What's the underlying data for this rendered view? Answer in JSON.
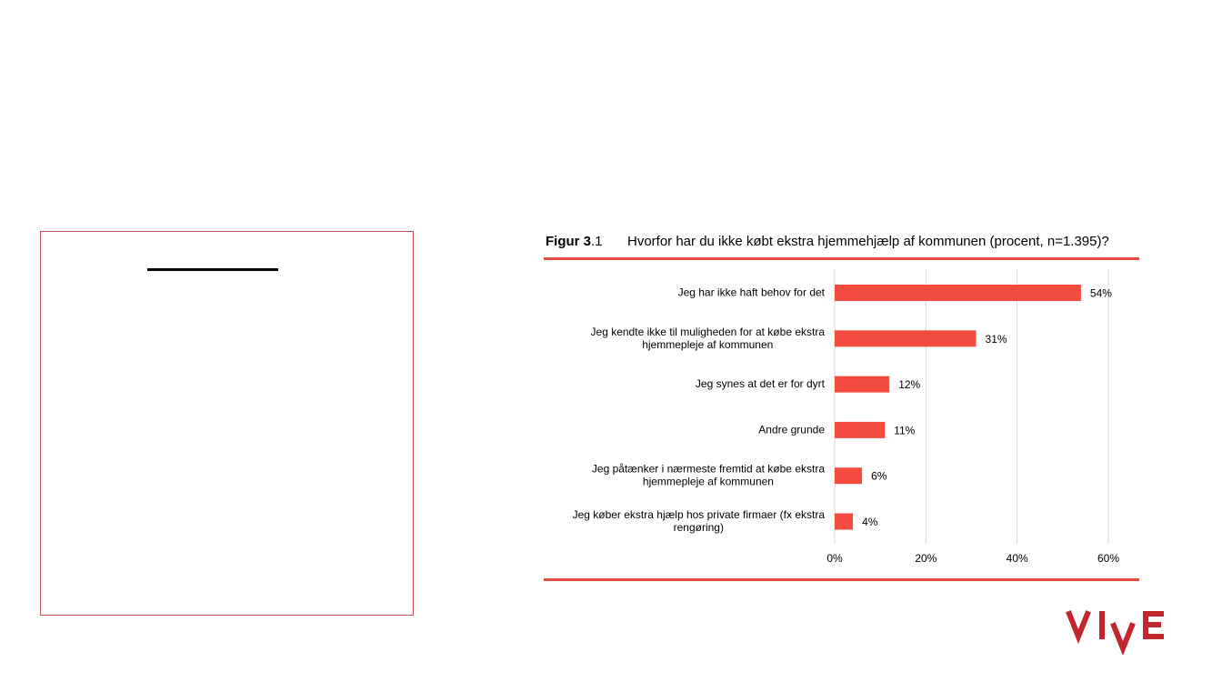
{
  "figure": {
    "label_bold": "Figur 3",
    "label_rest": ".1",
    "title": "Hvorfor har du ikke købt ekstra hjemmehjælp af kommunen (procent, n=1.395)?"
  },
  "logo": {
    "text": "VIVE",
    "color": "#c1272d"
  },
  "colors": {
    "bar": "#f44b3f",
    "rule": "#e94a3f",
    "grid": "#d9d9d9",
    "box_border": "#c4515a"
  },
  "chart_data": {
    "type": "bar",
    "orientation": "horizontal",
    "categories": [
      [
        "Jeg har ikke haft behov for det"
      ],
      [
        "Jeg kendte ikke til muligheden for at købe ekstra",
        "hjemmepleje af kommunen"
      ],
      [
        "Jeg synes at det er for dyrt"
      ],
      [
        "Andre grunde"
      ],
      [
        "Jeg påtænker i nærmeste fremtid at købe ekstra",
        "hjemmepleje af kommunen"
      ],
      [
        "Jeg køber ekstra hjælp hos private firmaer (fx ekstra",
        "rengøring)"
      ]
    ],
    "values": [
      54,
      31,
      12,
      11,
      6,
      4
    ],
    "value_labels": [
      "54%",
      "31%",
      "12%",
      "11%",
      "6%",
      "4%"
    ],
    "xlim": [
      0,
      60
    ],
    "xticks": [
      0,
      20,
      40,
      60
    ],
    "xtick_labels": [
      "0%",
      "20%",
      "40%",
      "60%"
    ],
    "grid": true
  }
}
